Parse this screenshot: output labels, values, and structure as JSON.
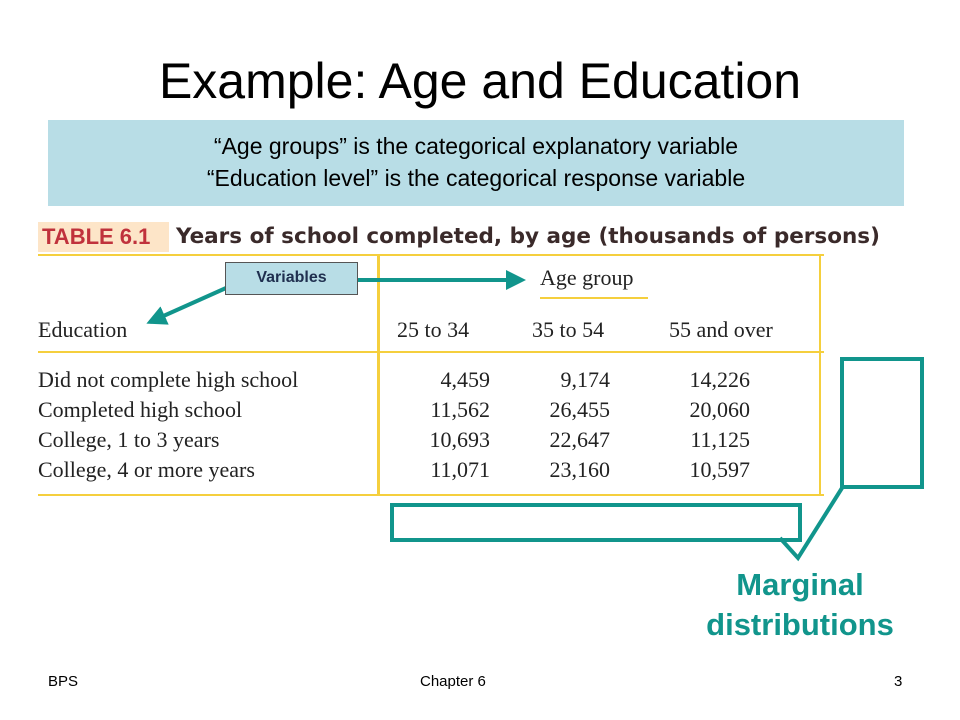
{
  "slide": {
    "title": "Example: Age and Education",
    "callout": {
      "line1": "“Age groups” is the categorical explanatory variable",
      "line2": "“Education level” is the categorical response variable"
    }
  },
  "table": {
    "label": "TABLE 6.1",
    "caption": "Years of school completed, by age (thousands of persons)",
    "group_header": "Age group",
    "row_header": "Education",
    "columns": [
      "25 to 34",
      "35 to 54",
      "55 and over"
    ],
    "rows": [
      {
        "label": "Did not complete high school",
        "values": [
          "4,459",
          "9,174",
          "14,226"
        ]
      },
      {
        "label": "Completed high school",
        "values": [
          "11,562",
          "26,455",
          "20,060"
        ]
      },
      {
        "label": "College, 1 to 3 years",
        "values": [
          "10,693",
          "22,647",
          "11,125"
        ]
      },
      {
        "label": "College, 4 or more years",
        "values": [
          "11,071",
          "23,160",
          "10,597"
        ]
      }
    ]
  },
  "annotations": {
    "variables_label": "Variables",
    "marginal_line1": "Marginal",
    "marginal_line2": "distributions"
  },
  "footer": {
    "left": "BPS",
    "center": "Chapter 6",
    "page_number": "3"
  },
  "colors": {
    "callout_bg": "#b8dde6",
    "table_rule": "#f5cf3d",
    "table_label_bg": "#fde5c8",
    "table_label_text": "#c0323c",
    "annotation_teal": "#11958c"
  }
}
